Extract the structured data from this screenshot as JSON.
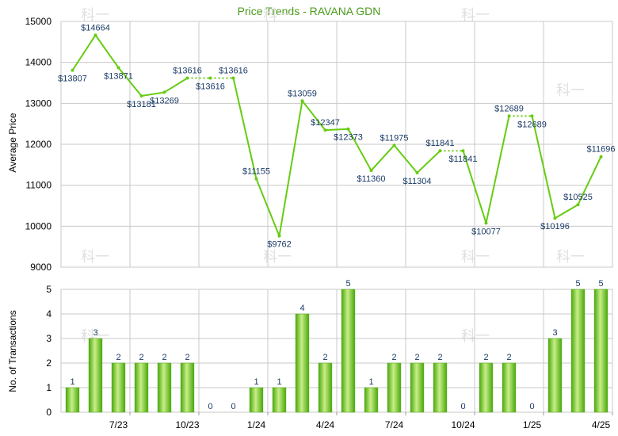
{
  "title": "Price Trends - RAVANA GDN",
  "colors": {
    "line": "#66cc11",
    "title": "#4a9a1a",
    "value_label": "#1a3a66",
    "bar_light": "#c8ee88",
    "bar_dark": "#4aa80c",
    "grid": "#c8c8c8",
    "watermark": "#e0e0e0"
  },
  "watermark_text": "科一",
  "chart_data": [
    {
      "type": "line",
      "ylabel": "Average Price",
      "ylim": [
        9000,
        15000
      ],
      "yticks": [
        "9000",
        "10000",
        "11000",
        "12000",
        "13000",
        "14000",
        "15000"
      ],
      "grid": true,
      "x": [
        "5/23",
        "6/23",
        "7/23",
        "8/23",
        "9/23",
        "10/23",
        "11/23",
        "12/23",
        "1/24",
        "2/24",
        "3/24",
        "4/24",
        "5/24",
        "6/24",
        "7/24",
        "8/24",
        "9/24",
        "10/24",
        "11/24",
        "12/24",
        "1/25",
        "2/25",
        "3/25",
        "4/25"
      ],
      "values": [
        13807,
        14664,
        13871,
        13181,
        13269,
        13616,
        13616,
        13616,
        11155,
        9762,
        13059,
        12347,
        12373,
        11360,
        11975,
        11304,
        11841,
        11841,
        10077,
        12689,
        12689,
        10196,
        10525,
        11696
      ],
      "labels": [
        "$13807",
        "$14664",
        "$13871",
        "$13181",
        "$13269",
        "$13616",
        "$13616",
        "$13616",
        "$11155",
        "$9762",
        "$13059",
        "$12347",
        "$12373",
        "$11360",
        "$11975",
        "$11304",
        "$11841",
        "$11841",
        "$10077",
        "$12689",
        "$12689",
        "$10196",
        "$10525",
        "$11696"
      ],
      "label_positions": [
        "below",
        "above",
        "below",
        "below",
        "below",
        "above",
        "below",
        "above",
        "above",
        "below",
        "above",
        "above",
        "below",
        "below",
        "above",
        "below",
        "above",
        "below",
        "below",
        "above",
        "below",
        "below",
        "above",
        "above"
      ],
      "dotted_segments": [
        [
          5,
          7
        ],
        [
          16,
          17
        ],
        [
          19,
          20
        ]
      ]
    },
    {
      "type": "bar",
      "ylabel": "No. of Transactions",
      "ylim": [
        0,
        5
      ],
      "yticks": [
        "0",
        "1",
        "2",
        "3",
        "4",
        "5"
      ],
      "grid": true,
      "categories": [
        "5/23",
        "6/23",
        "7/23",
        "8/23",
        "9/23",
        "10/23",
        "11/23",
        "12/23",
        "1/24",
        "2/24",
        "3/24",
        "4/24",
        "5/24",
        "6/24",
        "7/24",
        "8/24",
        "9/24",
        "10/24",
        "11/24",
        "12/24",
        "1/25",
        "2/25",
        "3/25",
        "4/25"
      ],
      "values": [
        1,
        3,
        2,
        2,
        2,
        2,
        0,
        0,
        1,
        1,
        4,
        2,
        5,
        1,
        2,
        2,
        2,
        0,
        2,
        2,
        0,
        3,
        5,
        5
      ],
      "x_tick_labels": [
        "7/23",
        "10/23",
        "1/24",
        "4/24",
        "7/24",
        "10/24",
        "1/25",
        "4/25"
      ],
      "x_tick_indices": [
        2,
        5,
        8,
        11,
        14,
        17,
        20,
        23
      ]
    }
  ]
}
